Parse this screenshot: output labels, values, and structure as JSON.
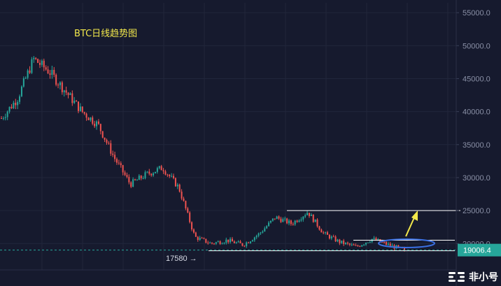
{
  "chart_data": {
    "type": "candlestick",
    "title": "BTC日线趋势图",
    "xlabel": "",
    "ylabel": "",
    "ylim": [
      16000,
      56500
    ],
    "y_ticks": [
      {
        "value": 20000,
        "label": "20000.0"
      },
      {
        "value": 25000,
        "label": "25000.0"
      },
      {
        "value": 30000,
        "label": "30000.0"
      },
      {
        "value": 35000,
        "label": "35000.0"
      },
      {
        "value": 40000,
        "label": "40000.0"
      },
      {
        "value": 45000,
        "label": "45000.0"
      },
      {
        "value": 50000,
        "label": "50000.0"
      },
      {
        "value": 55000,
        "label": "55000.0"
      }
    ],
    "grid": true,
    "up_color": "#26a69a",
    "down_color": "#ef5350",
    "current_price": {
      "value": 19006.4,
      "label": "19006.4",
      "color": "#26a69a"
    },
    "low_annotation": {
      "value": 17580,
      "label": "17580 →"
    },
    "horizontal_levels": [
      25000,
      20500,
      18900
    ],
    "trend_anchors": [
      39000,
      42000,
      48000,
      46000,
      43000,
      40000,
      38000,
      33000,
      29000,
      30500,
      31500,
      28500,
      21000,
      20000,
      20500,
      19800,
      21500,
      24000,
      23000,
      24800,
      21500,
      20200,
      19500,
      20700,
      19800,
      19000
    ]
  },
  "watermark": {
    "text": "非小号",
    "logo": "feixiaohao-logo-icon"
  },
  "annotations": {
    "arrow_color": "#f2e84b",
    "ellipse_color": "#3a6fe0"
  }
}
